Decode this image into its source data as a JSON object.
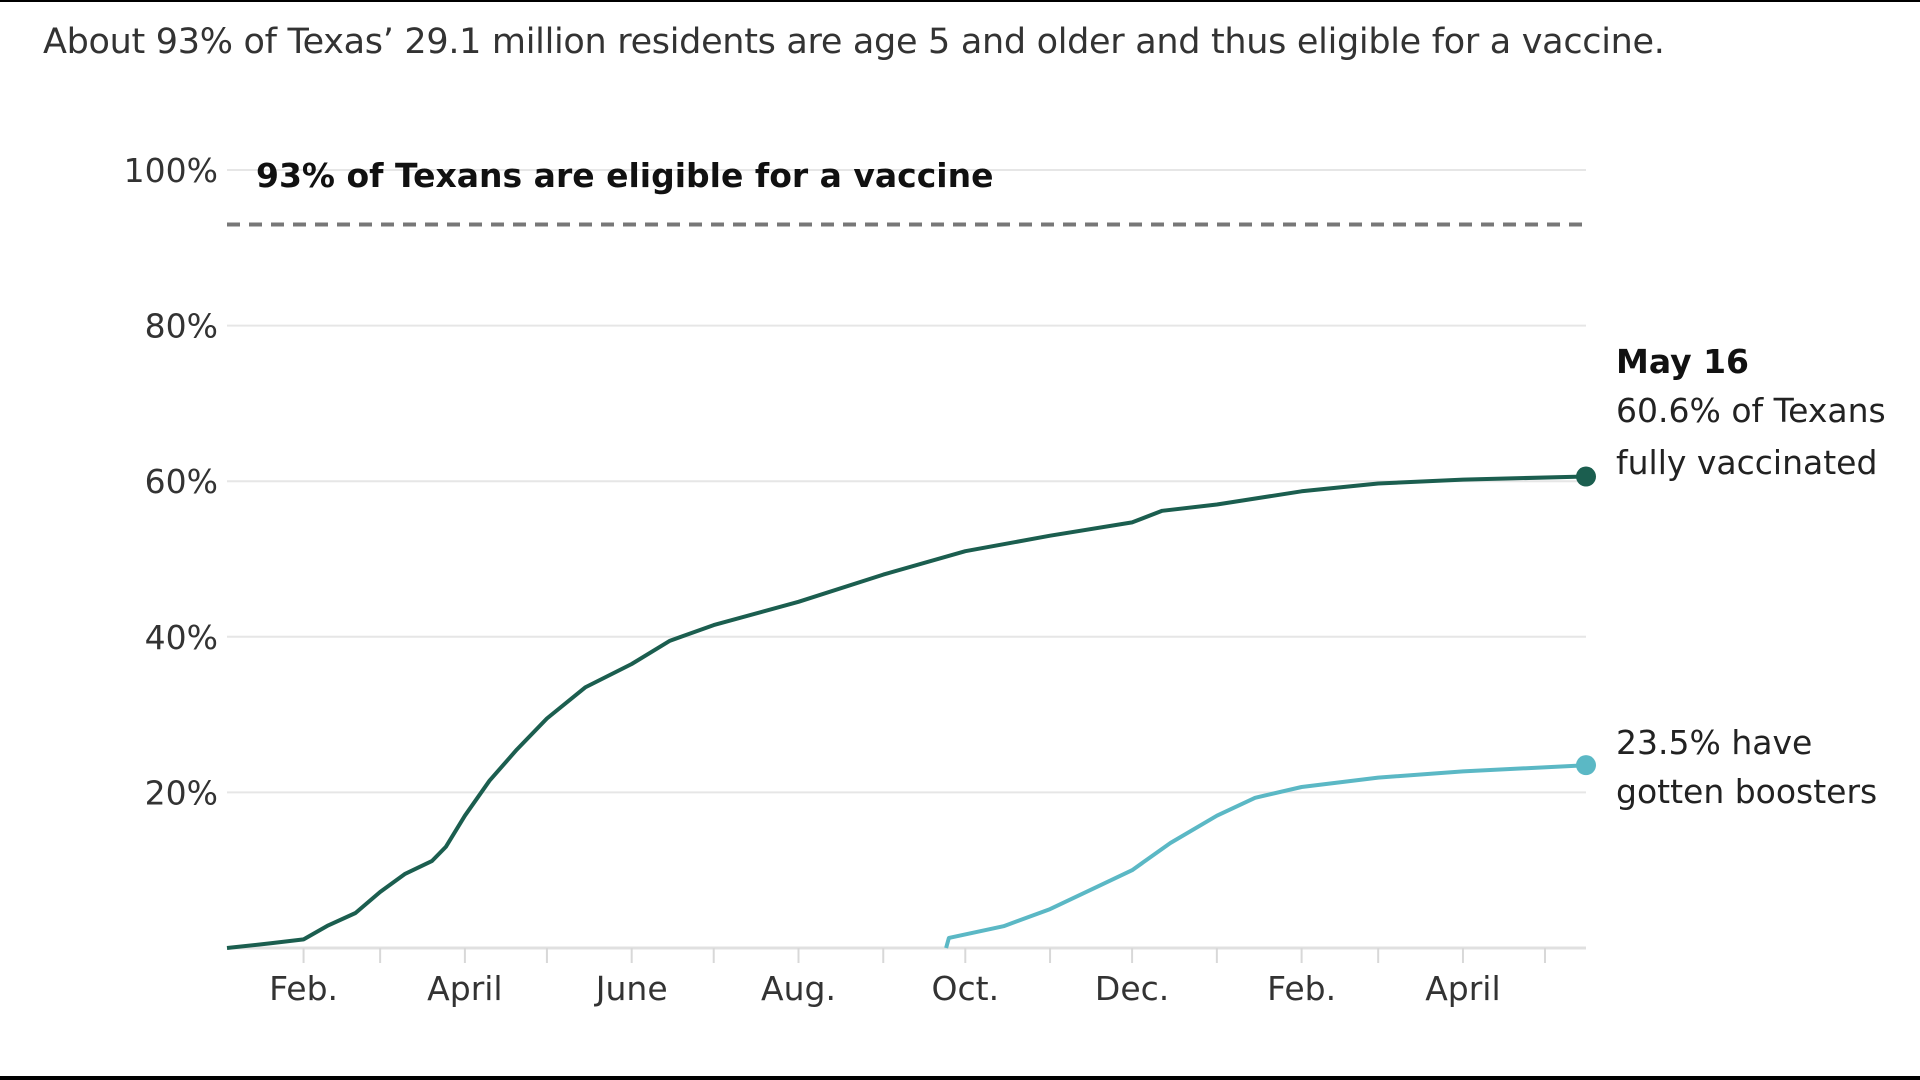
{
  "subtitle": "About 93% of Texas’ 29.1 million residents are age 5 and older and thus eligible for a vaccine.",
  "chart_data": {
    "type": "line",
    "title": "",
    "xlabel": "",
    "ylabel": "",
    "ylim": [
      0,
      100
    ],
    "xlim": [
      "2021-01-04",
      "2022-05-16"
    ],
    "grid": true,
    "y_ticks": [
      {
        "value": 20,
        "label": "20%"
      },
      {
        "value": 40,
        "label": "40%"
      },
      {
        "value": 60,
        "label": "60%"
      },
      {
        "value": 80,
        "label": "80%"
      },
      {
        "value": 100,
        "label": "100%"
      }
    ],
    "x_ticks": [
      {
        "date": "2021-02-01",
        "label": "Feb."
      },
      {
        "date": "2021-03-01",
        "label": ""
      },
      {
        "date": "2021-04-01",
        "label": "April"
      },
      {
        "date": "2021-05-01",
        "label": ""
      },
      {
        "date": "2021-06-01",
        "label": "June"
      },
      {
        "date": "2021-07-01",
        "label": ""
      },
      {
        "date": "2021-08-01",
        "label": "Aug."
      },
      {
        "date": "2021-09-01",
        "label": ""
      },
      {
        "date": "2021-10-01",
        "label": "Oct."
      },
      {
        "date": "2021-11-01",
        "label": ""
      },
      {
        "date": "2021-12-01",
        "label": "Dec."
      },
      {
        "date": "2022-01-01",
        "label": ""
      },
      {
        "date": "2022-02-01",
        "label": "Feb."
      },
      {
        "date": "2022-03-01",
        "label": ""
      },
      {
        "date": "2022-04-01",
        "label": "April"
      },
      {
        "date": "2022-05-01",
        "label": ""
      }
    ],
    "reference_line": {
      "value": 93,
      "label": "93% of Texans are eligible for a vaccine",
      "style": "dashed",
      "color": "#777777"
    },
    "series": [
      {
        "key": "fully_vaccinated",
        "color": "#1b5e4f",
        "points": [
          [
            "2021-01-04",
            0
          ],
          [
            "2021-01-20",
            0.6
          ],
          [
            "2021-02-01",
            1.1
          ],
          [
            "2021-02-10",
            2.9
          ],
          [
            "2021-02-20",
            4.5
          ],
          [
            "2021-03-01",
            7.2
          ],
          [
            "2021-03-10",
            9.5
          ],
          [
            "2021-03-20",
            11.2
          ],
          [
            "2021-03-25",
            13.0
          ],
          [
            "2021-04-01",
            17.0
          ],
          [
            "2021-04-10",
            21.5
          ],
          [
            "2021-04-20",
            25.5
          ],
          [
            "2021-05-01",
            29.5
          ],
          [
            "2021-05-15",
            33.5
          ],
          [
            "2021-06-01",
            36.5
          ],
          [
            "2021-06-15",
            39.5
          ],
          [
            "2021-07-01",
            41.5
          ],
          [
            "2021-08-01",
            44.5
          ],
          [
            "2021-09-01",
            48.0
          ],
          [
            "2021-10-01",
            51.0
          ],
          [
            "2021-11-01",
            53.0
          ],
          [
            "2021-12-01",
            54.7
          ],
          [
            "2021-12-12",
            56.2
          ],
          [
            "2022-01-01",
            57.0
          ],
          [
            "2022-02-01",
            58.7
          ],
          [
            "2022-03-01",
            59.7
          ],
          [
            "2022-04-01",
            60.2
          ],
          [
            "2022-05-16",
            60.6
          ]
        ],
        "end_label": {
          "date": "May 16",
          "lines": [
            "60.6% of Texans",
            "fully vaccinated"
          ]
        }
      },
      {
        "key": "boosters",
        "color": "#5bb8c5",
        "points": [
          [
            "2021-09-24",
            0
          ],
          [
            "2021-09-25",
            1.3
          ],
          [
            "2021-10-15",
            2.8
          ],
          [
            "2021-11-01",
            5.0
          ],
          [
            "2021-12-01",
            10.0
          ],
          [
            "2021-12-15",
            13.5
          ],
          [
            "2022-01-01",
            17.0
          ],
          [
            "2022-01-15",
            19.3
          ],
          [
            "2022-02-01",
            20.7
          ],
          [
            "2022-03-01",
            21.9
          ],
          [
            "2022-04-01",
            22.7
          ],
          [
            "2022-05-16",
            23.5
          ]
        ],
        "end_label": {
          "lines": [
            "23.5% have",
            "gotten boosters"
          ]
        }
      }
    ]
  }
}
